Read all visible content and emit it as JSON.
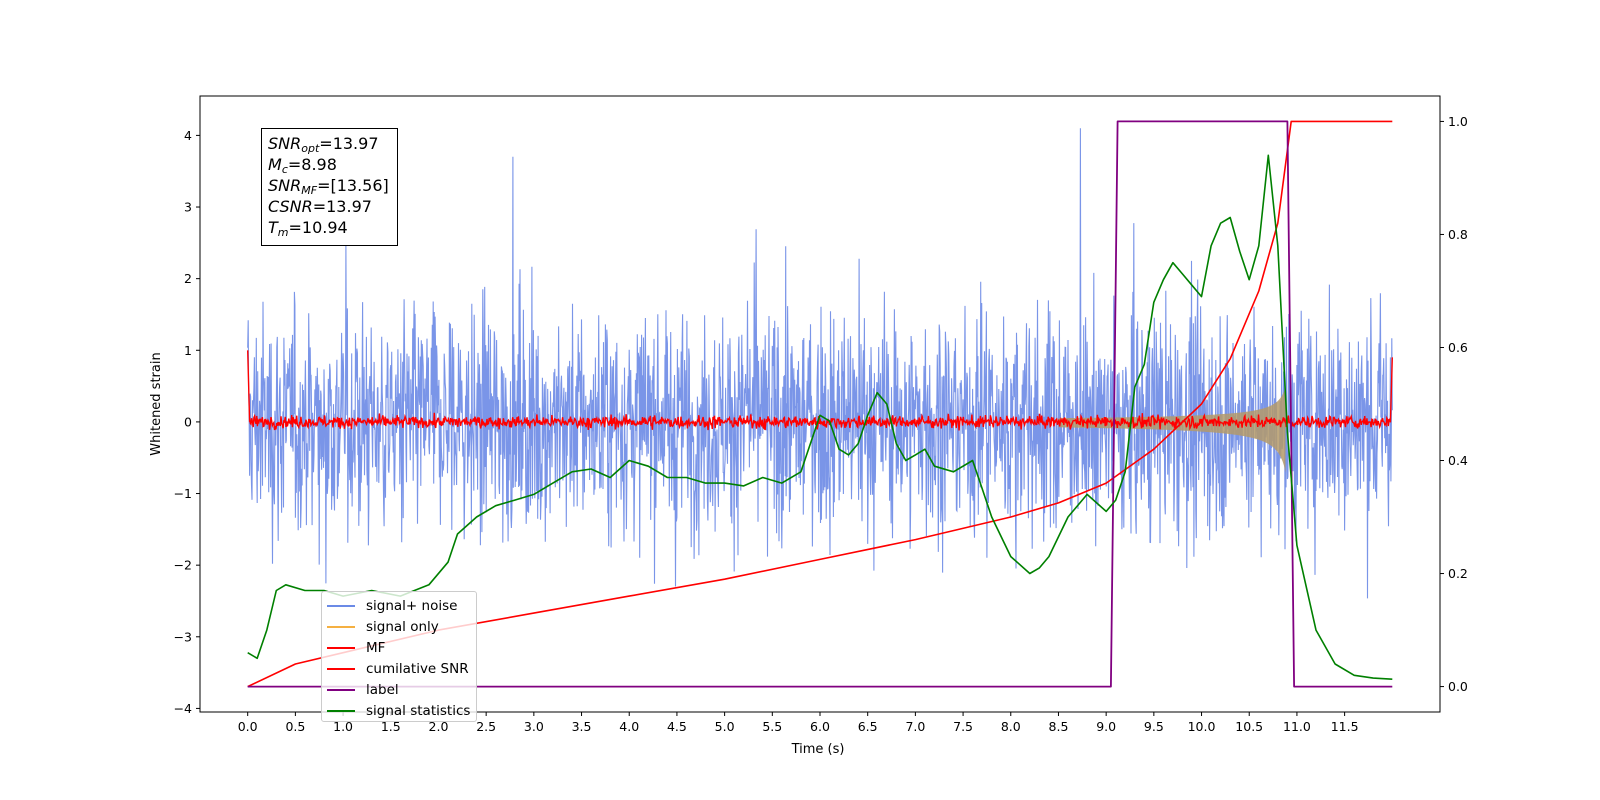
{
  "chart_data": {
    "type": "line",
    "xlabel": "Time (s)",
    "ylabel": "Whitened strain",
    "xlim": [
      -0.5,
      12.5
    ],
    "ylim": [
      -4.05,
      4.55
    ],
    "y2lim": [
      -0.045,
      1.045
    ],
    "xticks": [
      "0.0",
      "0.5",
      "1.0",
      "1.5",
      "2.0",
      "2.5",
      "3.0",
      "3.5",
      "4.0",
      "4.5",
      "5.0",
      "5.5",
      "6.0",
      "6.5",
      "7.0",
      "7.5",
      "8.0",
      "8.5",
      "9.0",
      "9.5",
      "10.0",
      "10.5",
      "11.0",
      "11.5"
    ],
    "yticks": [
      "4",
      "3",
      "2",
      "1",
      "0",
      "−1",
      "−2",
      "−3",
      "−4"
    ],
    "y2ticks": [
      "1.0",
      "0.8",
      "0.6",
      "0.4",
      "0.2",
      "0.0"
    ],
    "annotation": {
      "lines": [
        {
          "sym": "SNR",
          "sub": "opt",
          "value": "=13.97"
        },
        {
          "sym": "M",
          "sub": "c",
          "value": "=8.98"
        },
        {
          "sym": "SNR",
          "sub": "MF",
          "value": "=[13.56]"
        },
        {
          "sym": "CSNR",
          "sub": "",
          "value": "=13.97"
        },
        {
          "sym": "T",
          "sub": "m",
          "value": "=10.94"
        }
      ]
    },
    "legend_position": "lower-left",
    "series": [
      {
        "name": "signal+ noise",
        "color": "#6b8ae6",
        "description_range": [
          -3.6,
          4.1
        ]
      },
      {
        "name": "signal only",
        "color": "#f5b041"
      },
      {
        "name": "MF",
        "color": "#ff0000"
      },
      {
        "name": "cumilative SNR",
        "color": "#ff0000",
        "x": [
          0.0,
          0.5,
          1.0,
          2.0,
          3.0,
          4.0,
          5.0,
          6.0,
          7.0,
          8.0,
          8.5,
          9.0,
          9.5,
          10.0,
          10.3,
          10.6,
          10.8,
          10.94,
          12.0
        ],
        "y": [
          0.0,
          0.04,
          0.06,
          0.1,
          0.13,
          0.16,
          0.19,
          0.225,
          0.26,
          0.3,
          0.325,
          0.36,
          0.42,
          0.5,
          0.58,
          0.7,
          0.82,
          1.0,
          1.0
        ]
      },
      {
        "name": "label",
        "color": "#800080",
        "x": [
          0.0,
          9.05,
          9.12,
          10.9,
          10.97,
          12.0
        ],
        "y": [
          0.0,
          0.0,
          1.0,
          1.0,
          0.0,
          0.0
        ]
      },
      {
        "name": "signal statistics",
        "color": "#008000",
        "x": [
          0.0,
          0.1,
          0.2,
          0.3,
          0.4,
          0.6,
          0.8,
          1.0,
          1.3,
          1.6,
          1.9,
          2.1,
          2.2,
          2.4,
          2.6,
          2.8,
          3.0,
          3.2,
          3.4,
          3.6,
          3.8,
          4.0,
          4.2,
          4.4,
          4.6,
          4.8,
          5.0,
          5.2,
          5.4,
          5.6,
          5.8,
          6.0,
          6.1,
          6.2,
          6.3,
          6.4,
          6.5,
          6.6,
          6.7,
          6.8,
          6.9,
          7.0,
          7.1,
          7.2,
          7.4,
          7.6,
          7.7,
          7.8,
          8.0,
          8.2,
          8.3,
          8.4,
          8.6,
          8.8,
          9.0,
          9.1,
          9.2,
          9.3,
          9.4,
          9.5,
          9.6,
          9.7,
          9.8,
          9.9,
          10.0,
          10.1,
          10.2,
          10.3,
          10.4,
          10.5,
          10.6,
          10.7,
          10.8,
          10.9,
          11.0,
          11.2,
          11.4,
          11.6,
          11.8,
          12.0
        ],
        "y": [
          0.06,
          0.05,
          0.1,
          0.17,
          0.18,
          0.17,
          0.17,
          0.16,
          0.17,
          0.16,
          0.18,
          0.22,
          0.27,
          0.3,
          0.32,
          0.33,
          0.34,
          0.36,
          0.38,
          0.385,
          0.37,
          0.4,
          0.39,
          0.37,
          0.37,
          0.36,
          0.36,
          0.355,
          0.37,
          0.36,
          0.38,
          0.48,
          0.47,
          0.42,
          0.41,
          0.43,
          0.48,
          0.52,
          0.5,
          0.43,
          0.4,
          0.41,
          0.42,
          0.39,
          0.38,
          0.4,
          0.35,
          0.3,
          0.23,
          0.2,
          0.21,
          0.23,
          0.3,
          0.34,
          0.31,
          0.33,
          0.38,
          0.53,
          0.57,
          0.68,
          0.72,
          0.75,
          0.73,
          0.71,
          0.69,
          0.78,
          0.82,
          0.83,
          0.77,
          0.72,
          0.78,
          0.94,
          0.78,
          0.45,
          0.25,
          0.1,
          0.04,
          0.02,
          0.015,
          0.013
        ]
      }
    ]
  }
}
